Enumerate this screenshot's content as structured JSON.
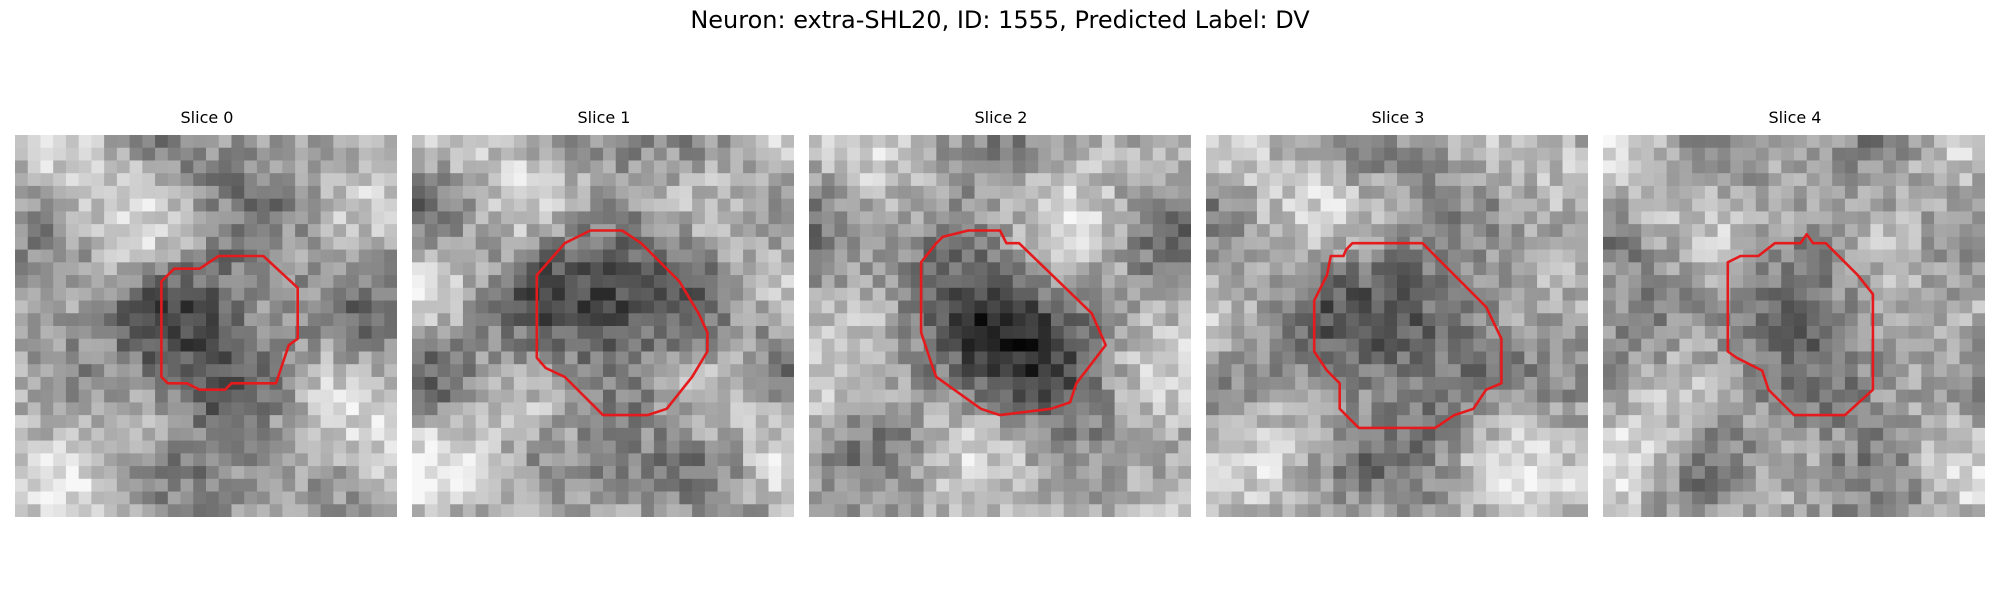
{
  "figure": {
    "title": "Neuron: extra-SHL20, ID: 1555, Predicted Label: DV"
  },
  "colors": {
    "contour": "#e41a1c",
    "background": "#ffffff"
  },
  "slices": [
    {
      "label": "Slice 0"
    },
    {
      "label": "Slice 1"
    },
    {
      "label": "Slice 2"
    },
    {
      "label": "Slice 3"
    },
    {
      "label": "Slice 4"
    }
  ]
}
